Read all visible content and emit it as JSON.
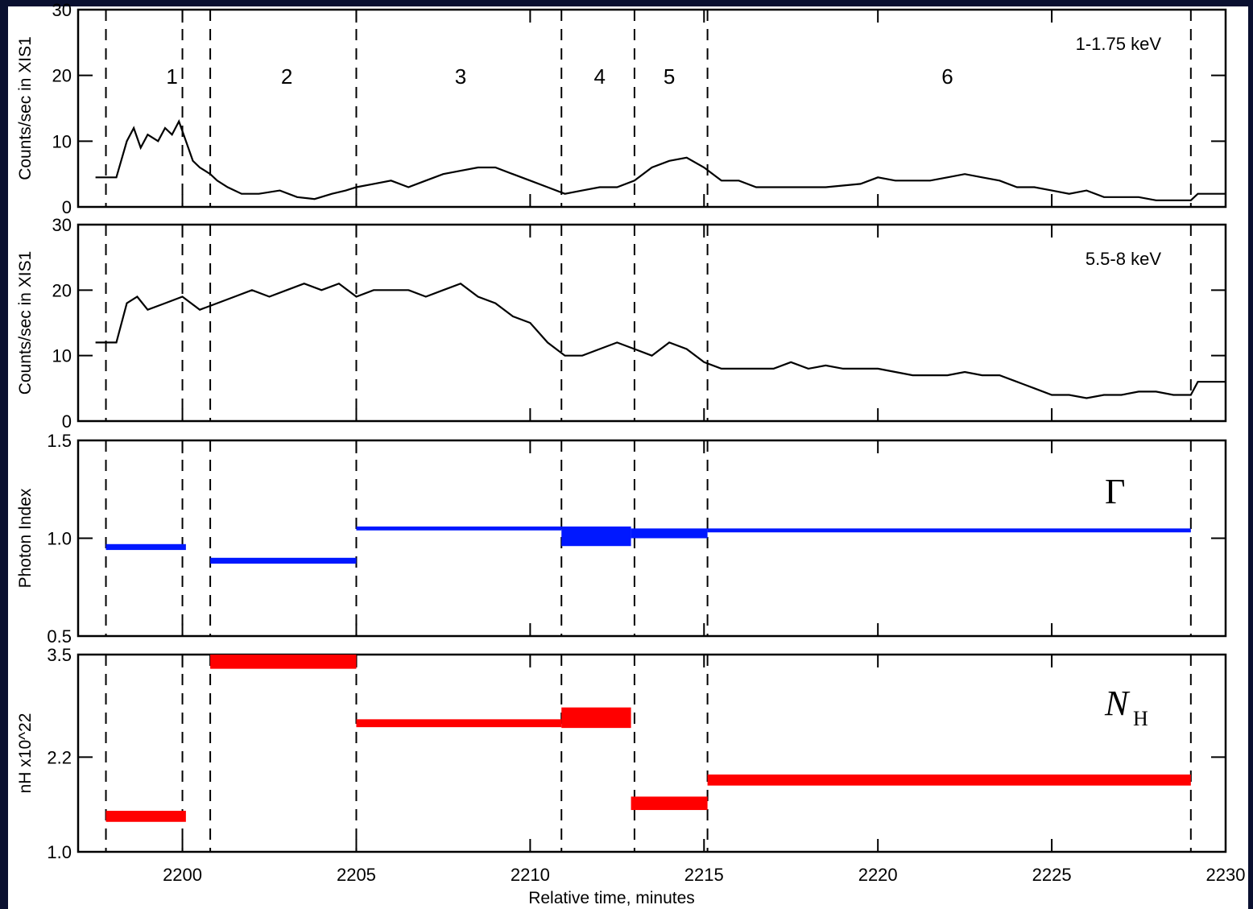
{
  "colors": {
    "background": "#0a1030",
    "plot": "#000000",
    "photon_index": "#0018ff",
    "nh": "#ff0000"
  },
  "chart_data": [
    {
      "type": "line",
      "panel": "soft",
      "ylabel": "Counts/sec in XIS1",
      "annotation": "1-1.75 keV",
      "ylim": [
        0,
        30
      ],
      "yticks": [
        0,
        10,
        20,
        30
      ],
      "segment_labels": [
        {
          "label": "1",
          "x": 2199.7
        },
        {
          "label": "2",
          "x": 2203.0
        },
        {
          "label": "3",
          "x": 2208.0
        },
        {
          "label": "4",
          "x": 2212.0
        },
        {
          "label": "5",
          "x": 2214.0
        },
        {
          "label": "6",
          "x": 2222.0
        }
      ],
      "series": [
        {
          "values": [
            [
              2197.5,
              4.5
            ],
            [
              2198.1,
              4.5
            ],
            [
              2198.4,
              10
            ],
            [
              2198.6,
              12
            ],
            [
              2198.8,
              9
            ],
            [
              2199.0,
              11
            ],
            [
              2199.3,
              10
            ],
            [
              2199.5,
              12
            ],
            [
              2199.7,
              11
            ],
            [
              2199.9,
              13
            ],
            [
              2200.1,
              10
            ],
            [
              2200.3,
              7
            ],
            [
              2200.5,
              6
            ],
            [
              2200.8,
              5
            ],
            [
              2201.0,
              4
            ],
            [
              2201.3,
              3
            ],
            [
              2201.7,
              2
            ],
            [
              2202.2,
              2
            ],
            [
              2202.8,
              2.5
            ],
            [
              2203.3,
              1.5
            ],
            [
              2203.8,
              1.2
            ],
            [
              2204.3,
              2
            ],
            [
              2204.7,
              2.5
            ],
            [
              2205.0,
              3
            ],
            [
              2205.5,
              3.5
            ],
            [
              2206.0,
              4
            ],
            [
              2206.5,
              3
            ],
            [
              2207.0,
              4
            ],
            [
              2207.5,
              5
            ],
            [
              2208.0,
              5.5
            ],
            [
              2208.5,
              6
            ],
            [
              2209.0,
              6
            ],
            [
              2209.5,
              5
            ],
            [
              2210.0,
              4
            ],
            [
              2210.5,
              3
            ],
            [
              2211.0,
              2
            ],
            [
              2211.5,
              2.5
            ],
            [
              2212.0,
              3
            ],
            [
              2212.5,
              3
            ],
            [
              2213.0,
              4
            ],
            [
              2213.5,
              6
            ],
            [
              2214.0,
              7
            ],
            [
              2214.5,
              7.5
            ],
            [
              2215.0,
              6
            ],
            [
              2215.5,
              4
            ],
            [
              2216.0,
              4
            ],
            [
              2216.5,
              3
            ],
            [
              2217.5,
              3
            ],
            [
              2218.5,
              3
            ],
            [
              2219.5,
              3.5
            ],
            [
              2220.0,
              4.5
            ],
            [
              2220.5,
              4
            ],
            [
              2221.5,
              4
            ],
            [
              2222.0,
              4.5
            ],
            [
              2222.5,
              5
            ],
            [
              2223.0,
              4.5
            ],
            [
              2223.5,
              4
            ],
            [
              2224.0,
              3
            ],
            [
              2224.5,
              3
            ],
            [
              2225.0,
              2.5
            ],
            [
              2225.5,
              2
            ],
            [
              2226.0,
              2.5
            ],
            [
              2226.5,
              1.5
            ],
            [
              2227.0,
              1.5
            ],
            [
              2227.5,
              1.5
            ],
            [
              2228.0,
              1
            ],
            [
              2228.5,
              1
            ],
            [
              2229.0,
              1
            ],
            [
              2229.2,
              2
            ],
            [
              2230.0,
              2
            ]
          ]
        }
      ]
    },
    {
      "type": "line",
      "panel": "hard",
      "ylabel": "Counts/sec in XIS1",
      "annotation": "5.5-8 keV",
      "ylim": [
        0,
        30
      ],
      "yticks": [
        0,
        10,
        20,
        30
      ],
      "series": [
        {
          "values": [
            [
              2197.5,
              12
            ],
            [
              2198.1,
              12
            ],
            [
              2198.4,
              18
            ],
            [
              2198.7,
              19
            ],
            [
              2199.0,
              17
            ],
            [
              2199.5,
              18
            ],
            [
              2200.0,
              19
            ],
            [
              2200.5,
              17
            ],
            [
              2201.0,
              18
            ],
            [
              2201.5,
              19
            ],
            [
              2202.0,
              20
            ],
            [
              2202.5,
              19
            ],
            [
              2203.0,
              20
            ],
            [
              2203.5,
              21
            ],
            [
              2204.0,
              20
            ],
            [
              2204.5,
              21
            ],
            [
              2205.0,
              19
            ],
            [
              2205.5,
              20
            ],
            [
              2206.0,
              20
            ],
            [
              2206.5,
              20
            ],
            [
              2207.0,
              19
            ],
            [
              2207.5,
              20
            ],
            [
              2208.0,
              21
            ],
            [
              2208.5,
              19
            ],
            [
              2209.0,
              18
            ],
            [
              2209.5,
              16
            ],
            [
              2210.0,
              15
            ],
            [
              2210.5,
              12
            ],
            [
              2211.0,
              10
            ],
            [
              2211.5,
              10
            ],
            [
              2212.0,
              11
            ],
            [
              2212.5,
              12
            ],
            [
              2213.0,
              11
            ],
            [
              2213.5,
              10
            ],
            [
              2214.0,
              12
            ],
            [
              2214.5,
              11
            ],
            [
              2215.0,
              9
            ],
            [
              2215.5,
              8
            ],
            [
              2216.0,
              8
            ],
            [
              2216.5,
              8
            ],
            [
              2217.0,
              8
            ],
            [
              2217.5,
              9
            ],
            [
              2218.0,
              8
            ],
            [
              2218.5,
              8.5
            ],
            [
              2219.0,
              8
            ],
            [
              2219.5,
              8
            ],
            [
              2220.0,
              8
            ],
            [
              2220.5,
              7.5
            ],
            [
              2221.0,
              7
            ],
            [
              2221.5,
              7
            ],
            [
              2222.0,
              7
            ],
            [
              2222.5,
              7.5
            ],
            [
              2223.0,
              7
            ],
            [
              2223.5,
              7
            ],
            [
              2224.0,
              6
            ],
            [
              2224.5,
              5
            ],
            [
              2225.0,
              4
            ],
            [
              2225.5,
              4
            ],
            [
              2226.0,
              3.5
            ],
            [
              2226.5,
              4
            ],
            [
              2227.0,
              4
            ],
            [
              2227.5,
              4.5
            ],
            [
              2228.0,
              4.5
            ],
            [
              2228.5,
              4
            ],
            [
              2229.0,
              4
            ],
            [
              2229.2,
              6
            ],
            [
              2230.0,
              6
            ]
          ]
        }
      ]
    },
    {
      "type": "bar",
      "panel": "photon-index",
      "ylabel": "Photon Index",
      "symbol": "Γ",
      "ylim": [
        0.5,
        1.5
      ],
      "yticks": [
        "0.5",
        "1.0",
        "1.5"
      ],
      "segments": [
        {
          "x0": 2197.8,
          "x1": 2200.1,
          "lo": 0.94,
          "hi": 0.97
        },
        {
          "x0": 2200.8,
          "x1": 2205.0,
          "lo": 0.87,
          "hi": 0.9
        },
        {
          "x0": 2205.0,
          "x1": 2210.9,
          "lo": 1.04,
          "hi": 1.06
        },
        {
          "x0": 2210.9,
          "x1": 2212.9,
          "lo": 0.96,
          "hi": 1.06
        },
        {
          "x0": 2212.9,
          "x1": 2215.1,
          "lo": 1.0,
          "hi": 1.05
        },
        {
          "x0": 2215.1,
          "x1": 2229.0,
          "lo": 1.03,
          "hi": 1.05
        }
      ]
    },
    {
      "type": "bar",
      "panel": "nh",
      "ylabel": "nH x10^22",
      "symbol": "N",
      "symbol_sub": "H",
      "ylim": [
        1.0,
        3.5
      ],
      "yticks": [
        "1.0",
        "2.2",
        "3.5"
      ],
      "xlabel": "Relative time, minutes",
      "xlim": [
        2197.0,
        2230.0
      ],
      "xticks": [
        "2200",
        "2205",
        "2210",
        "2215",
        "2220",
        "2225",
        "2230"
      ],
      "segments": [
        {
          "x0": 2197.8,
          "x1": 2200.1,
          "lo": 1.38,
          "hi": 1.52
        },
        {
          "x0": 2200.8,
          "x1": 2205.0,
          "lo": 3.32,
          "hi": 3.5
        },
        {
          "x0": 2205.0,
          "x1": 2210.9,
          "lo": 2.58,
          "hi": 2.68
        },
        {
          "x0": 2210.9,
          "x1": 2212.9,
          "lo": 2.57,
          "hi": 2.83
        },
        {
          "x0": 2212.9,
          "x1": 2215.1,
          "lo": 1.53,
          "hi": 1.7
        },
        {
          "x0": 2215.1,
          "x1": 2229.0,
          "lo": 1.84,
          "hi": 1.98
        }
      ]
    }
  ],
  "dividers": [
    2197.8,
    2200.0,
    2200.8,
    2205.0,
    2210.9,
    2213.0,
    2215.1,
    2229.0
  ]
}
